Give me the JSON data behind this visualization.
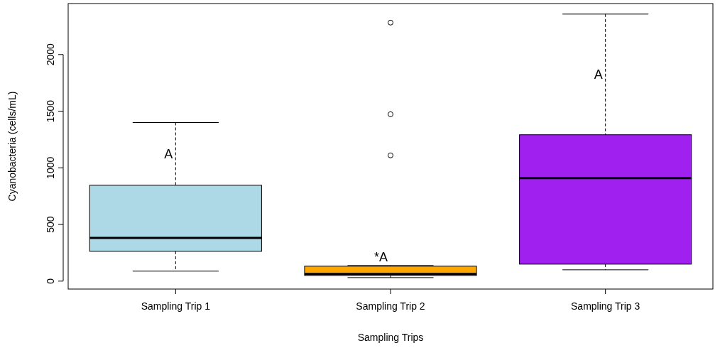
{
  "chart_data": {
    "type": "box",
    "xlabel": "Sampling Trips",
    "ylabel": "Cyanobacteria (cells/mL)",
    "categories": [
      "Sampling Trip 1",
      "Sampling Trip 2",
      "Sampling Trip 3"
    ],
    "colors": [
      "#add8e6",
      "#ffa500",
      "#a020f0"
    ],
    "boxes": [
      {
        "low": 88,
        "q1": 263,
        "median": 382,
        "q3": 846,
        "high": 1400
      },
      {
        "low": 31,
        "q1": 50,
        "median": 63,
        "q3": 132,
        "high": 138,
        "outliers": [
          1110,
          1473,
          2282
        ]
      },
      {
        "low": 100,
        "q1": 150,
        "median": 909,
        "q3": 1292,
        "high": 2357
      }
    ],
    "ylim": [
      -70,
      2450
    ],
    "yticks": [
      0,
      500,
      1000,
      1500,
      2000
    ],
    "annotations": [
      "A",
      "*A",
      "A"
    ]
  }
}
